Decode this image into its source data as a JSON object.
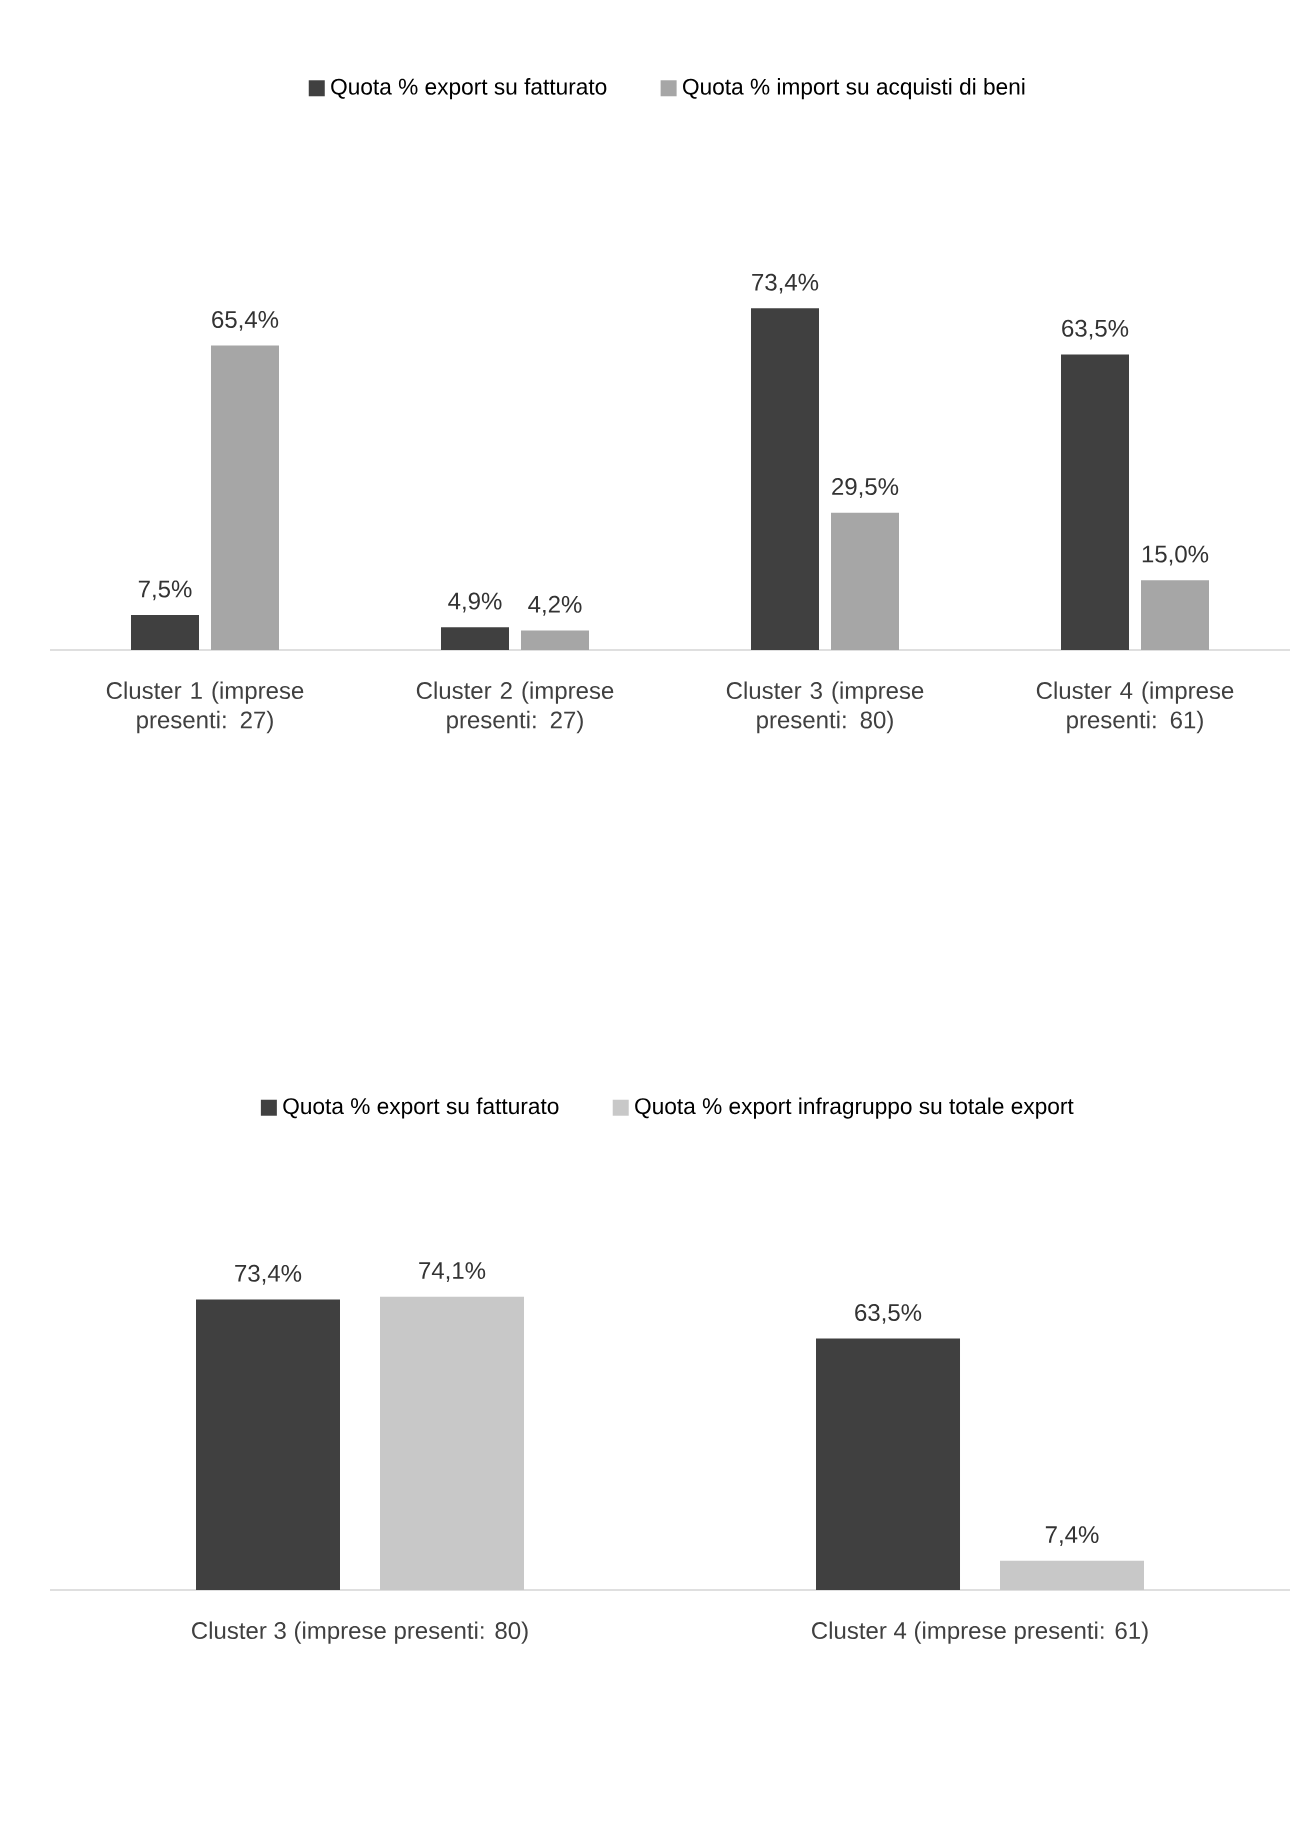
{
  "chart_data": [
    {
      "type": "bar",
      "legend": "top",
      "categories": [
        "Cluster 1 (imprese presenti: 27)",
        "Cluster 2 (imprese presenti: 27)",
        "Cluster 3 (imprese presenti: 80)",
        "Cluster 4 (imprese presenti: 61)"
      ],
      "series": [
        {
          "name": "Quota % export su fatturato",
          "color": "#404040",
          "values": [
            7.5,
            4.9,
            73.4,
            63.5
          ],
          "value_labels": [
            "7,5%",
            "4,9%",
            "73,4%",
            "63,5%"
          ]
        },
        {
          "name": "Quota % import su acquisti di beni",
          "color": "#a6a6a6",
          "values": [
            65.4,
            4.2,
            29.5,
            15.0
          ],
          "value_labels": [
            "65,4%",
            "4,2%",
            "29,5%",
            "15,0%"
          ]
        }
      ]
    },
    {
      "type": "bar",
      "legend": "top",
      "categories": [
        "Cluster 3  (imprese presenti: 80)",
        "Cluster 4 (imprese presenti: 61)"
      ],
      "series": [
        {
          "name": "Quota % export su fatturato",
          "color": "#404040",
          "values": [
            73.4,
            63.5
          ],
          "value_labels": [
            "73,4%",
            "63,5%"
          ]
        },
        {
          "name": "Quota % export infragruppo su totale export",
          "color": "#c8c8c8",
          "values": [
            74.1,
            7.4
          ],
          "value_labels": [
            "74,1%",
            "7,4%"
          ]
        }
      ]
    }
  ]
}
